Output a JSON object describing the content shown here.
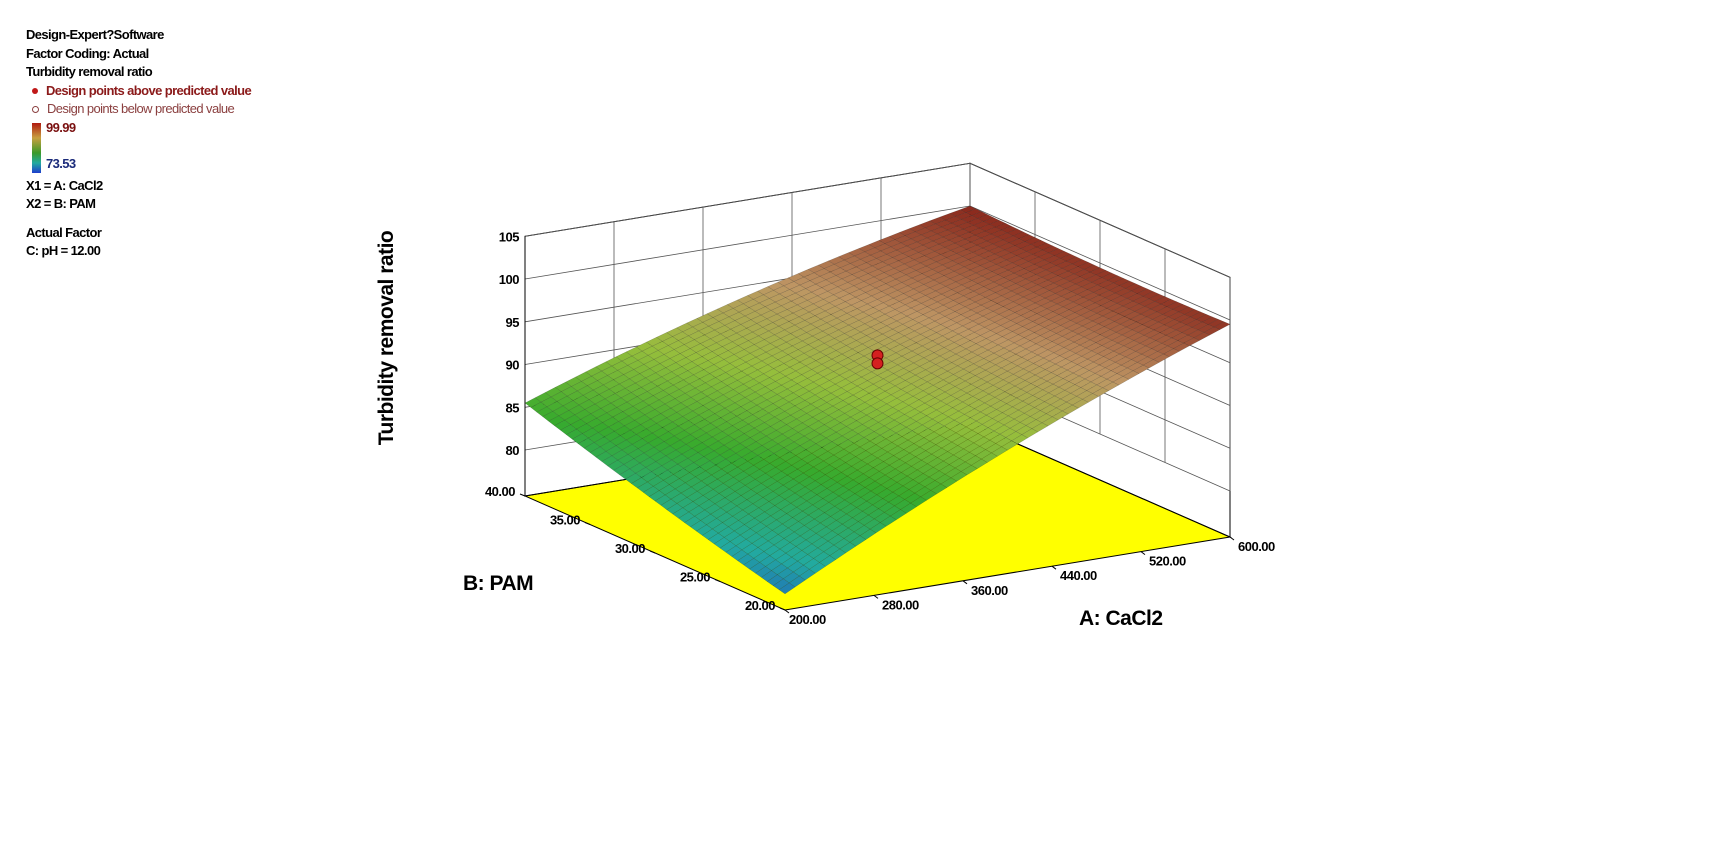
{
  "legend": {
    "software": "Design-Expert?Software",
    "coding": "Factor Coding: Actual",
    "response": "Turbidity removal ratio",
    "above": "Design points above predicted value",
    "below": "Design points below predicted value",
    "cb_max": "99.99",
    "cb_min": "73.53",
    "x1": "X1 = A: CaCl2",
    "x2": "X2 = B: PAM",
    "actual_factor": "Actual Factor",
    "ph": "C: pH = 12.00"
  },
  "colors": {
    "floor": "#ffff00",
    "point": "#d42020",
    "high": "#8a2a20",
    "low": "#20b0c0"
  },
  "chart_data": {
    "type": "surface3d",
    "title": "",
    "xlabel": "A: CaCl2",
    "ylabel": "B: PAM",
    "zlabel": "Turbidity removal ratio",
    "xlim": [
      200,
      600
    ],
    "ylim": [
      20,
      40
    ],
    "zlim": [
      80,
      105
    ],
    "x_ticks": [
      "200.00",
      "280.00",
      "360.00",
      "440.00",
      "520.00",
      "600.00"
    ],
    "y_ticks": [
      "20.00",
      "25.00",
      "30.00",
      "35.00",
      "40.00"
    ],
    "z_ticks": [
      "80",
      "85",
      "90",
      "95",
      "100",
      "105"
    ],
    "surface_corners": [
      {
        "a": 200,
        "b": 20,
        "z": 76.5
      },
      {
        "a": 200,
        "b": 40,
        "z": 85.5
      },
      {
        "a": 600,
        "b": 20,
        "z": 99.5
      },
      {
        "a": 600,
        "b": 40,
        "z": 100.0
      }
    ],
    "design_points": [
      {
        "a": 400,
        "b": 30,
        "z": 93.0
      }
    ]
  }
}
